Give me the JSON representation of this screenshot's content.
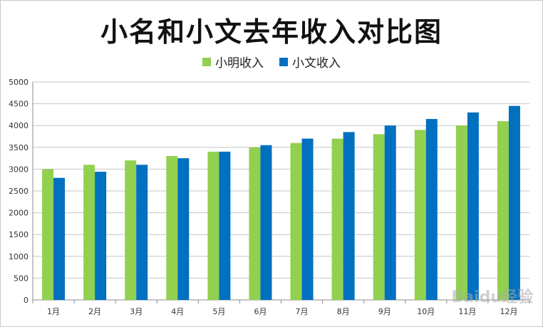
{
  "chart_data": {
    "type": "bar",
    "title": "小名和小文去年收入对比图",
    "categories": [
      "1月",
      "2月",
      "3月",
      "4月",
      "5月",
      "6月",
      "7月",
      "8月",
      "9月",
      "10月",
      "11月",
      "12月"
    ],
    "series": [
      {
        "name": "小明收入",
        "color": "#92d050",
        "values": [
          3000,
          3100,
          3200,
          3300,
          3400,
          3500,
          3600,
          3700,
          3800,
          3900,
          4000,
          4100
        ]
      },
      {
        "name": "小文收入",
        "color": "#0070c0",
        "values": [
          2800,
          2940,
          3100,
          3250,
          3400,
          3550,
          3700,
          3850,
          4000,
          4150,
          4300,
          4450
        ]
      }
    ],
    "ylim": [
      0,
      5000
    ],
    "yticks": [
      0,
      500,
      1000,
      1500,
      2000,
      2500,
      3000,
      3500,
      4000,
      4500,
      5000
    ],
    "grid": true,
    "legend_position": "top"
  },
  "watermark": "Baidu经验"
}
